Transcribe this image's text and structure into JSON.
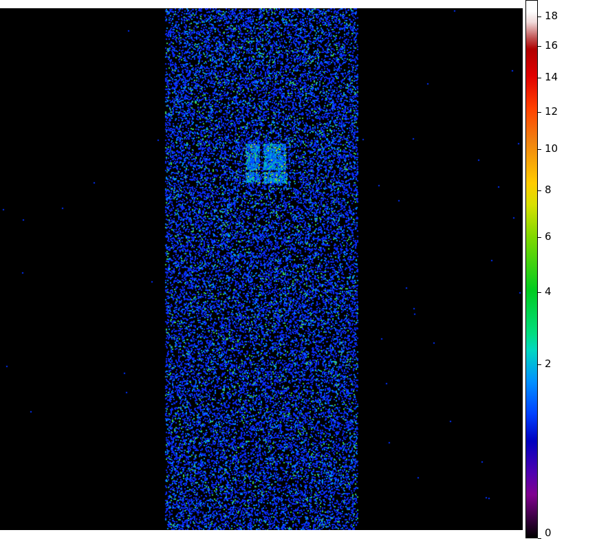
{
  "chart_data": {
    "type": "heatmap",
    "title": "",
    "colorbar": {
      "ticks": [
        "0",
        "2",
        "4",
        "6",
        "8",
        "10",
        "12",
        "14",
        "16",
        "18"
      ],
      "range": [
        0,
        19
      ],
      "scale": "sqrt"
    },
    "colormap": [
      "#000000",
      "#800090",
      "#0000c0",
      "#0040ff",
      "#0090ff",
      "#00d8c0",
      "#00cc20",
      "#d8e000",
      "#ffcc00",
      "#f08010",
      "#e00000",
      "#b00000",
      "#ffffff"
    ],
    "features": {
      "background": "sparse counts 0-2 in central strip",
      "hotspot": "two bright rectangular regions ~2-6 counts near top center"
    }
  }
}
